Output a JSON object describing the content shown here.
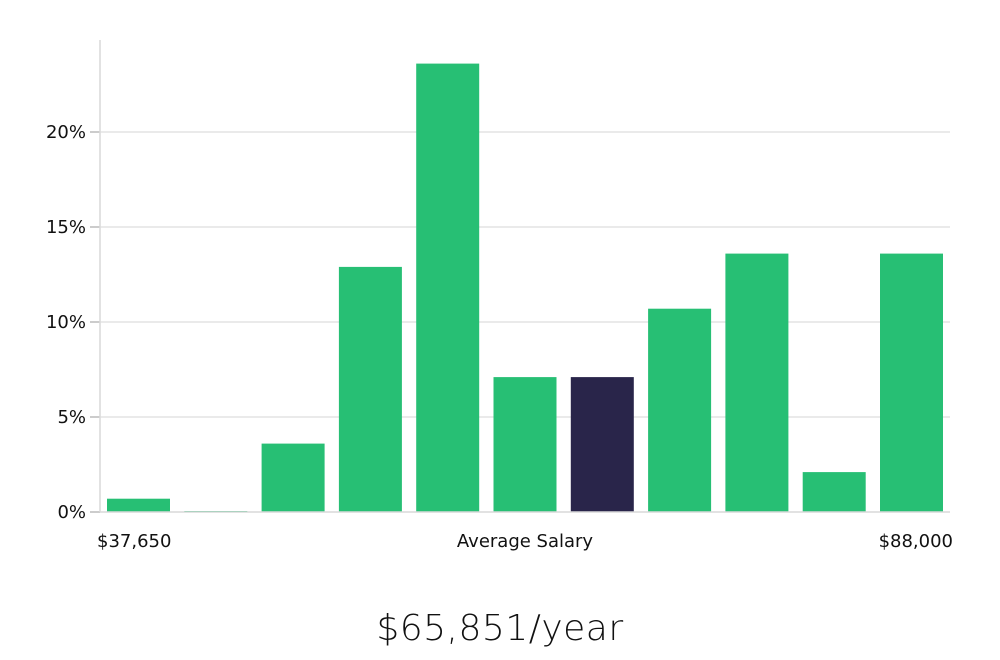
{
  "chart_data": {
    "type": "bar",
    "values": [
      0.7,
      0.05,
      3.6,
      12.9,
      23.6,
      7.1,
      7.1,
      10.7,
      13.6,
      2.1,
      13.6
    ],
    "highlight_index": 6,
    "yticks": [
      "0%",
      "5%",
      "10%",
      "15%",
      "20%"
    ],
    "ytick_values": [
      0,
      5,
      10,
      15,
      20
    ],
    "ylim": [
      0,
      25
    ],
    "x_min_label": "$37,650",
    "x_center_label": "Average Salary",
    "x_max_label": "$88,000",
    "grid": true,
    "colors": {
      "bar": "#27bf74",
      "highlight": "#29254a",
      "grid": "#e4e4e4",
      "axis": "#d9d9d9"
    }
  },
  "summary": {
    "salary": "$65,851/year"
  }
}
